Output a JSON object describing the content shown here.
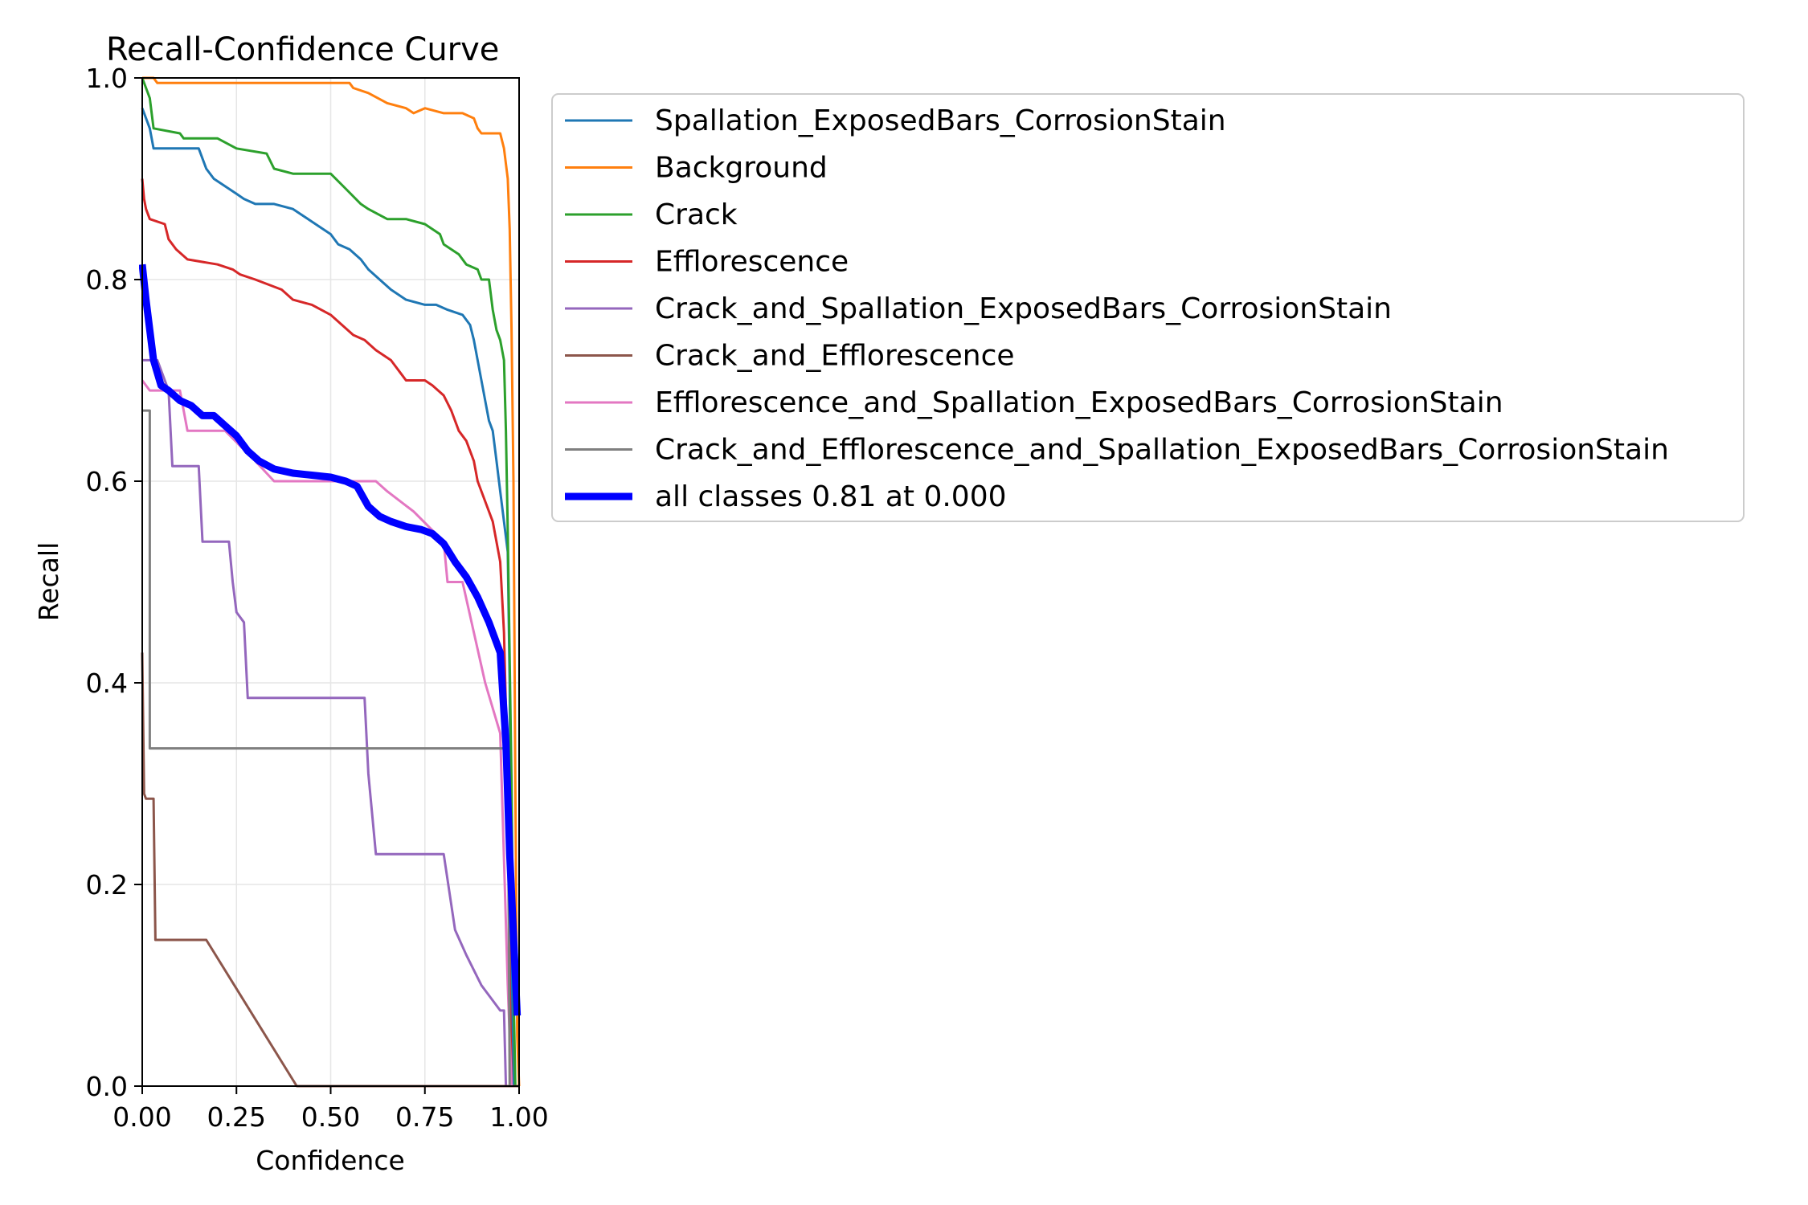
{
  "chart_data": {
    "type": "line",
    "title": "Recall-Confidence Curve",
    "xlabel": "Confidence",
    "ylabel": "Recall",
    "xlim": [
      0,
      1
    ],
    "ylim": [
      0,
      1
    ],
    "grid": true,
    "legend_position": "outside-right-top",
    "x_ticks": [
      "0.00",
      "0.25",
      "0.50",
      "0.75",
      "1.00"
    ],
    "y_ticks": [
      "0.0",
      "0.2",
      "0.4",
      "0.6",
      "0.8",
      "1.0"
    ],
    "series": [
      {
        "name": "Spallation_ExposedBars_CorrosionStain",
        "color": "#1f77b4",
        "width": 2,
        "points": [
          [
            0,
            0.97
          ],
          [
            0.01,
            0.96
          ],
          [
            0.02,
            0.95
          ],
          [
            0.03,
            0.93
          ],
          [
            0.08,
            0.93
          ],
          [
            0.15,
            0.93
          ],
          [
            0.17,
            0.91
          ],
          [
            0.19,
            0.9
          ],
          [
            0.21,
            0.895
          ],
          [
            0.23,
            0.89
          ],
          [
            0.25,
            0.885
          ],
          [
            0.27,
            0.88
          ],
          [
            0.3,
            0.875
          ],
          [
            0.35,
            0.875
          ],
          [
            0.4,
            0.87
          ],
          [
            0.44,
            0.86
          ],
          [
            0.48,
            0.85
          ],
          [
            0.5,
            0.845
          ],
          [
            0.52,
            0.835
          ],
          [
            0.55,
            0.83
          ],
          [
            0.58,
            0.82
          ],
          [
            0.6,
            0.81
          ],
          [
            0.63,
            0.8
          ],
          [
            0.66,
            0.79
          ],
          [
            0.7,
            0.78
          ],
          [
            0.75,
            0.775
          ],
          [
            0.78,
            0.775
          ],
          [
            0.81,
            0.77
          ],
          [
            0.85,
            0.765
          ],
          [
            0.87,
            0.755
          ],
          [
            0.88,
            0.74
          ],
          [
            0.89,
            0.72
          ],
          [
            0.9,
            0.7
          ],
          [
            0.91,
            0.68
          ],
          [
            0.92,
            0.66
          ],
          [
            0.93,
            0.65
          ],
          [
            0.94,
            0.62
          ],
          [
            0.95,
            0.59
          ],
          [
            0.96,
            0.56
          ],
          [
            0.97,
            0.53
          ],
          [
            0.975,
            0.4
          ],
          [
            0.98,
            0.1
          ],
          [
            0.985,
            0
          ]
        ]
      },
      {
        "name": "Background",
        "color": "#ff7f0e",
        "width": 2,
        "points": [
          [
            0,
            1.0
          ],
          [
            0.03,
            1.0
          ],
          [
            0.04,
            0.995
          ],
          [
            0.1,
            0.995
          ],
          [
            0.3,
            0.995
          ],
          [
            0.45,
            0.995
          ],
          [
            0.55,
            0.995
          ],
          [
            0.56,
            0.99
          ],
          [
            0.6,
            0.985
          ],
          [
            0.65,
            0.975
          ],
          [
            0.7,
            0.97
          ],
          [
            0.72,
            0.965
          ],
          [
            0.75,
            0.97
          ],
          [
            0.8,
            0.965
          ],
          [
            0.85,
            0.965
          ],
          [
            0.88,
            0.96
          ],
          [
            0.89,
            0.95
          ],
          [
            0.9,
            0.945
          ],
          [
            0.95,
            0.945
          ],
          [
            0.96,
            0.93
          ],
          [
            0.97,
            0.9
          ],
          [
            0.975,
            0.85
          ],
          [
            0.98,
            0.75
          ],
          [
            0.985,
            0.6
          ],
          [
            0.99,
            0.3
          ],
          [
            0.995,
            0.05
          ],
          [
            1.0,
            0
          ]
        ]
      },
      {
        "name": "Crack",
        "color": "#2ca02c",
        "width": 2,
        "points": [
          [
            0,
            1.0
          ],
          [
            0.01,
            0.99
          ],
          [
            0.02,
            0.98
          ],
          [
            0.03,
            0.95
          ],
          [
            0.1,
            0.945
          ],
          [
            0.11,
            0.94
          ],
          [
            0.2,
            0.94
          ],
          [
            0.25,
            0.93
          ],
          [
            0.33,
            0.925
          ],
          [
            0.35,
            0.91
          ],
          [
            0.4,
            0.905
          ],
          [
            0.5,
            0.905
          ],
          [
            0.54,
            0.89
          ],
          [
            0.58,
            0.875
          ],
          [
            0.6,
            0.87
          ],
          [
            0.65,
            0.86
          ],
          [
            0.7,
            0.86
          ],
          [
            0.75,
            0.855
          ],
          [
            0.79,
            0.845
          ],
          [
            0.8,
            0.835
          ],
          [
            0.84,
            0.825
          ],
          [
            0.86,
            0.815
          ],
          [
            0.89,
            0.81
          ],
          [
            0.9,
            0.8
          ],
          [
            0.92,
            0.8
          ],
          [
            0.93,
            0.77
          ],
          [
            0.94,
            0.75
          ],
          [
            0.95,
            0.74
          ],
          [
            0.96,
            0.72
          ],
          [
            0.965,
            0.65
          ],
          [
            0.97,
            0.55
          ],
          [
            0.98,
            0.3
          ],
          [
            0.985,
            0.1
          ],
          [
            0.99,
            0
          ]
        ]
      },
      {
        "name": "Efflorescence",
        "color": "#d62728",
        "width": 2,
        "points": [
          [
            0,
            0.9
          ],
          [
            0.005,
            0.88
          ],
          [
            0.01,
            0.87
          ],
          [
            0.02,
            0.86
          ],
          [
            0.06,
            0.855
          ],
          [
            0.07,
            0.84
          ],
          [
            0.09,
            0.83
          ],
          [
            0.12,
            0.82
          ],
          [
            0.2,
            0.815
          ],
          [
            0.24,
            0.81
          ],
          [
            0.26,
            0.805
          ],
          [
            0.3,
            0.8
          ],
          [
            0.37,
            0.79
          ],
          [
            0.4,
            0.78
          ],
          [
            0.45,
            0.775
          ],
          [
            0.5,
            0.765
          ],
          [
            0.53,
            0.755
          ],
          [
            0.56,
            0.745
          ],
          [
            0.59,
            0.74
          ],
          [
            0.62,
            0.73
          ],
          [
            0.66,
            0.72
          ],
          [
            0.69,
            0.705
          ],
          [
            0.7,
            0.7
          ],
          [
            0.75,
            0.7
          ],
          [
            0.77,
            0.695
          ],
          [
            0.8,
            0.685
          ],
          [
            0.82,
            0.67
          ],
          [
            0.84,
            0.65
          ],
          [
            0.86,
            0.64
          ],
          [
            0.88,
            0.62
          ],
          [
            0.89,
            0.6
          ],
          [
            0.91,
            0.58
          ],
          [
            0.93,
            0.56
          ],
          [
            0.95,
            0.52
          ],
          [
            0.96,
            0.45
          ],
          [
            0.97,
            0.3
          ],
          [
            0.975,
            0.1
          ],
          [
            0.98,
            0
          ]
        ]
      },
      {
        "name": "Crack_and_Spallation_ExposedBars_CorrosionStain",
        "color": "#9467bd",
        "width": 2,
        "points": [
          [
            0,
            0.72
          ],
          [
            0.04,
            0.72
          ],
          [
            0.07,
            0.69
          ],
          [
            0.08,
            0.615
          ],
          [
            0.15,
            0.615
          ],
          [
            0.16,
            0.54
          ],
          [
            0.23,
            0.54
          ],
          [
            0.24,
            0.5
          ],
          [
            0.25,
            0.47
          ],
          [
            0.27,
            0.46
          ],
          [
            0.28,
            0.385
          ],
          [
            0.3,
            0.385
          ],
          [
            0.59,
            0.385
          ],
          [
            0.6,
            0.31
          ],
          [
            0.62,
            0.23
          ],
          [
            0.8,
            0.23
          ],
          [
            0.83,
            0.155
          ],
          [
            0.86,
            0.13
          ],
          [
            0.9,
            0.1
          ],
          [
            0.95,
            0.075
          ],
          [
            0.96,
            0.075
          ],
          [
            0.965,
            0
          ]
        ]
      },
      {
        "name": "Crack_and_Efflorescence",
        "color": "#8c564b",
        "width": 2,
        "points": [
          [
            0,
            0.43
          ],
          [
            0.005,
            0.29
          ],
          [
            0.01,
            0.285
          ],
          [
            0.03,
            0.285
          ],
          [
            0.035,
            0.145
          ],
          [
            0.17,
            0.145
          ],
          [
            0.41,
            0
          ],
          [
            1.0,
            0
          ]
        ]
      },
      {
        "name": "Efflorescence_and_Spallation_ExposedBars_CorrosionStain",
        "color": "#e377c2",
        "width": 2,
        "points": [
          [
            0,
            0.7
          ],
          [
            0.02,
            0.69
          ],
          [
            0.1,
            0.69
          ],
          [
            0.12,
            0.65
          ],
          [
            0.22,
            0.65
          ],
          [
            0.3,
            0.62
          ],
          [
            0.35,
            0.6
          ],
          [
            0.62,
            0.6
          ],
          [
            0.65,
            0.59
          ],
          [
            0.72,
            0.57
          ],
          [
            0.8,
            0.54
          ],
          [
            0.81,
            0.5
          ],
          [
            0.85,
            0.5
          ],
          [
            0.88,
            0.45
          ],
          [
            0.91,
            0.4
          ],
          [
            0.95,
            0.35
          ],
          [
            0.97,
            0.1
          ],
          [
            0.98,
            0
          ]
        ]
      },
      {
        "name": "Crack_and_Efflorescence_and_Spallation_ExposedBars_CorrosionStain",
        "color": "#7f7f7f",
        "width": 2,
        "points": [
          [
            0,
            0.67
          ],
          [
            0.02,
            0.67
          ],
          [
            0.02,
            0.335
          ],
          [
            0.97,
            0.335
          ],
          [
            0.975,
            0
          ]
        ]
      },
      {
        "name": "all classes 0.81 at 0.000",
        "color": "#0000ff",
        "width": 6,
        "points": [
          [
            0,
            0.815
          ],
          [
            0.01,
            0.78
          ],
          [
            0.02,
            0.75
          ],
          [
            0.03,
            0.72
          ],
          [
            0.05,
            0.695
          ],
          [
            0.07,
            0.69
          ],
          [
            0.1,
            0.68
          ],
          [
            0.13,
            0.675
          ],
          [
            0.16,
            0.665
          ],
          [
            0.19,
            0.665
          ],
          [
            0.22,
            0.655
          ],
          [
            0.25,
            0.645
          ],
          [
            0.28,
            0.63
          ],
          [
            0.31,
            0.62
          ],
          [
            0.35,
            0.612
          ],
          [
            0.4,
            0.608
          ],
          [
            0.45,
            0.606
          ],
          [
            0.5,
            0.604
          ],
          [
            0.54,
            0.6
          ],
          [
            0.57,
            0.595
          ],
          [
            0.6,
            0.575
          ],
          [
            0.63,
            0.565
          ],
          [
            0.66,
            0.56
          ],
          [
            0.7,
            0.555
          ],
          [
            0.74,
            0.552
          ],
          [
            0.77,
            0.548
          ],
          [
            0.8,
            0.538
          ],
          [
            0.83,
            0.52
          ],
          [
            0.86,
            0.505
          ],
          [
            0.89,
            0.485
          ],
          [
            0.92,
            0.46
          ],
          [
            0.95,
            0.43
          ],
          [
            0.965,
            0.34
          ],
          [
            0.975,
            0.23
          ],
          [
            0.985,
            0.15
          ],
          [
            0.995,
            0.07
          ]
        ]
      }
    ]
  }
}
